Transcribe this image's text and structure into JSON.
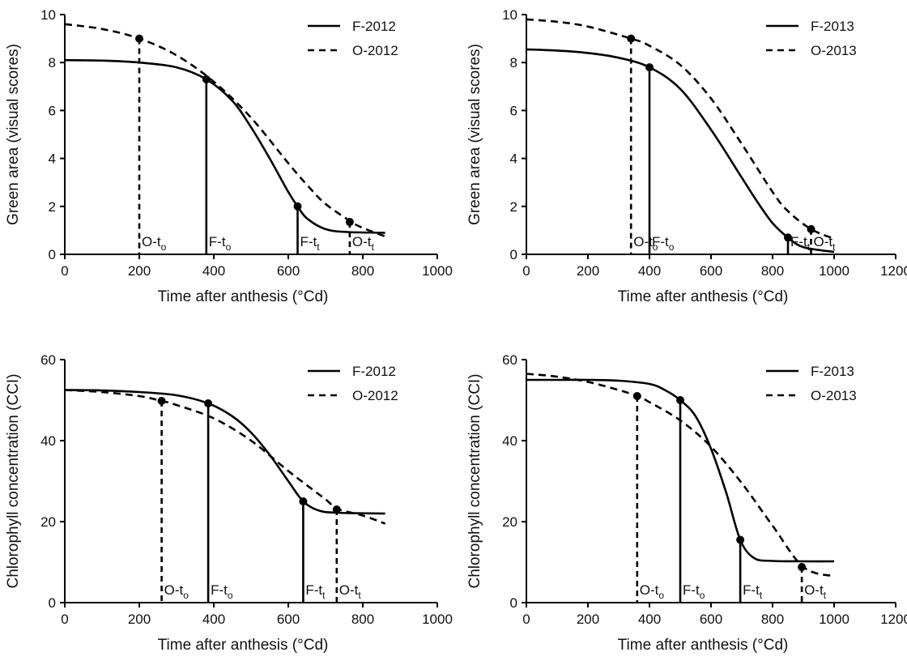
{
  "chart_data": [
    {
      "id": "A",
      "type": "line",
      "xlabel": "Time after anthesis (°Cd)",
      "ylabel": "Green area (visual scores)",
      "xlim": [
        0,
        1000
      ],
      "ylim": [
        0,
        10
      ],
      "xticks": [
        0,
        200,
        400,
        600,
        800,
        1000
      ],
      "yticks": [
        0,
        2,
        4,
        6,
        8,
        10
      ],
      "legend_position": "top-right",
      "series": [
        {
          "name": "F-2012",
          "style": "solid",
          "x": [
            0,
            100,
            200,
            300,
            380,
            450,
            500,
            550,
            600,
            625,
            650,
            700,
            760,
            860
          ],
          "y": [
            8.1,
            8.08,
            8.0,
            7.8,
            7.3,
            6.4,
            5.3,
            4.0,
            2.6,
            2.0,
            1.5,
            1.05,
            0.93,
            0.9
          ]
        },
        {
          "name": "O-2012",
          "style": "dashed",
          "x": [
            0,
            100,
            200,
            300,
            400,
            500,
            600,
            650,
            700,
            770,
            800,
            860
          ],
          "y": [
            9.6,
            9.4,
            9.0,
            8.3,
            7.2,
            5.7,
            3.8,
            2.9,
            2.1,
            1.35,
            1.1,
            0.75
          ]
        }
      ],
      "markers": [
        {
          "x": 200,
          "y": 9.0,
          "style": "dashed",
          "label": "O-t",
          "sub": "o",
          "label_x": 200
        },
        {
          "x": 380,
          "y": 7.3,
          "style": "solid",
          "label": "F-t",
          "sub": "o",
          "label_x": 380
        },
        {
          "x": 625,
          "y": 2.0,
          "style": "solid",
          "label": "F-t",
          "sub": "t",
          "label_x": 625
        },
        {
          "x": 765,
          "y": 1.35,
          "style": "dashed",
          "label": "O-t",
          "sub": "t",
          "label_x": 765
        }
      ]
    },
    {
      "id": "B",
      "type": "line",
      "xlabel": "Time after anthesis (°Cd)",
      "ylabel": "Green area (visual scores)",
      "xlim": [
        0,
        1200
      ],
      "ylim": [
        0,
        10
      ],
      "xticks": [
        0,
        200,
        400,
        600,
        800,
        1000,
        1200
      ],
      "yticks": [
        0,
        2,
        4,
        6,
        8,
        10
      ],
      "legend_position": "top-right",
      "series": [
        {
          "name": "F-2013",
          "style": "solid",
          "x": [
            0,
            100,
            200,
            300,
            400,
            500,
            600,
            700,
            750,
            800,
            850,
            900,
            1000
          ],
          "y": [
            8.55,
            8.5,
            8.4,
            8.2,
            7.8,
            6.9,
            5.2,
            3.2,
            2.2,
            1.3,
            0.7,
            0.3,
            0.1
          ]
        },
        {
          "name": "O-2013",
          "style": "dashed",
          "x": [
            0,
            100,
            200,
            340,
            400,
            500,
            600,
            700,
            800,
            850,
            925,
            1000
          ],
          "y": [
            9.8,
            9.7,
            9.5,
            9.0,
            8.7,
            7.9,
            6.5,
            4.6,
            2.6,
            1.8,
            1.05,
            0.65
          ]
        }
      ],
      "markers": [
        {
          "x": 340,
          "y": 9.0,
          "style": "dashed",
          "label": "O-t",
          "sub": "o",
          "label_x": 340
        },
        {
          "x": 400,
          "y": 7.8,
          "style": "solid",
          "label": "F-t",
          "sub": "o",
          "label_x": 400
        },
        {
          "x": 850,
          "y": 0.7,
          "style": "solid",
          "label": "F-t",
          "sub": "t",
          "label_x": 850
        },
        {
          "x": 925,
          "y": 1.05,
          "style": "dashed",
          "label": "O-t",
          "sub": "t",
          "label_x": 925
        }
      ]
    },
    {
      "id": "C",
      "type": "line",
      "xlabel": "Time after anthesis (°Cd)",
      "ylabel": "Chlorophyll concentration (CCI)",
      "xlim": [
        0,
        1000
      ],
      "ylim": [
        0,
        60
      ],
      "xticks": [
        0,
        200,
        400,
        600,
        800,
        1000
      ],
      "yticks": [
        0,
        20,
        40,
        60
      ],
      "legend_position": "top-right",
      "series": [
        {
          "name": "F-2012",
          "style": "solid",
          "x": [
            0,
            100,
            200,
            300,
            385,
            450,
            500,
            550,
            600,
            640,
            680,
            730,
            860
          ],
          "y": [
            52.5,
            52.4,
            52.0,
            51.2,
            49.2,
            46.0,
            42.0,
            36.5,
            30.0,
            25.0,
            22.8,
            22.2,
            22.0
          ]
        },
        {
          "name": "O-2012",
          "style": "dashed",
          "x": [
            0,
            100,
            200,
            260,
            300,
            400,
            500,
            600,
            700,
            730,
            800,
            860
          ],
          "y": [
            52.5,
            52.0,
            51.0,
            49.8,
            48.8,
            45.5,
            40.0,
            32.5,
            25.5,
            23.2,
            21.5,
            19.5
          ]
        }
      ],
      "markers": [
        {
          "x": 260,
          "y": 49.8,
          "style": "dashed",
          "label": "O-t",
          "sub": "o",
          "label_x": 260
        },
        {
          "x": 385,
          "y": 49.2,
          "style": "solid",
          "label": "F-t",
          "sub": "o",
          "label_x": 385
        },
        {
          "x": 640,
          "y": 25.0,
          "style": "solid",
          "label": "F-t",
          "sub": "t",
          "label_x": 640
        },
        {
          "x": 730,
          "y": 23.0,
          "style": "dashed",
          "label": "O-t",
          "sub": "t",
          "label_x": 730
        }
      ]
    },
    {
      "id": "D",
      "type": "line",
      "xlabel": "Time after anthesis (°Cd)",
      "ylabel": "Chlorophyll concentration (CCI)",
      "xlim": [
        0,
        1200
      ],
      "ylim": [
        0,
        60
      ],
      "xticks": [
        0,
        200,
        400,
        600,
        800,
        1000,
        1200
      ],
      "yticks": [
        0,
        20,
        40,
        60
      ],
      "legend_position": "top-right",
      "series": [
        {
          "name": "F-2013",
          "style": "solid",
          "x": [
            0,
            100,
            200,
            300,
            400,
            450,
            500,
            550,
            600,
            650,
            695,
            740,
            800,
            900,
            1000
          ],
          "y": [
            55.0,
            55.0,
            55.0,
            54.8,
            54.0,
            52.5,
            50.0,
            46.0,
            38.0,
            27.0,
            15.5,
            11.0,
            10.3,
            10.2,
            10.2
          ]
        },
        {
          "name": "O-2013",
          "style": "dashed",
          "x": [
            0,
            100,
            200,
            300,
            360,
            400,
            500,
            600,
            700,
            800,
            900,
            1000
          ],
          "y": [
            56.5,
            55.8,
            54.5,
            52.5,
            51.0,
            49.5,
            45.0,
            38.5,
            29.5,
            19.0,
            8.8,
            6.5
          ]
        }
      ],
      "markers": [
        {
          "x": 360,
          "y": 51.0,
          "style": "dashed",
          "label": "O-t",
          "sub": "o",
          "label_x": 360
        },
        {
          "x": 500,
          "y": 50.0,
          "style": "solid",
          "label": "F-t",
          "sub": "o",
          "label_x": 500
        },
        {
          "x": 695,
          "y": 15.5,
          "style": "solid",
          "label": "F-t",
          "sub": "t",
          "label_x": 695
        },
        {
          "x": 895,
          "y": 8.8,
          "style": "dashed",
          "label": "O-t",
          "sub": "t",
          "label_x": 895
        }
      ]
    }
  ]
}
